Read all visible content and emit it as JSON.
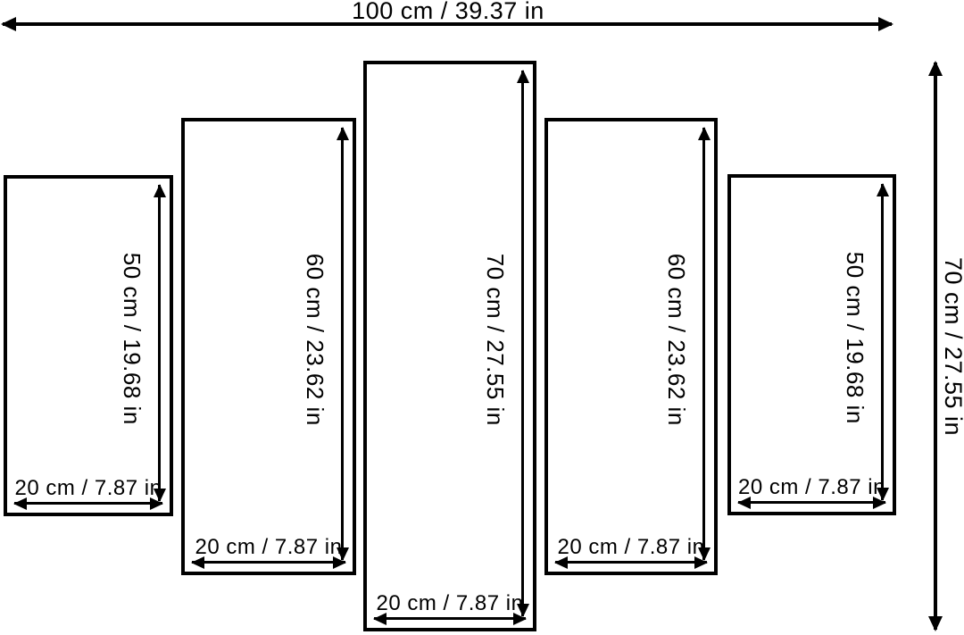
{
  "diagram": {
    "type": "5-panel canvas size diagram",
    "overall": {
      "width_label": "100 cm / 39.37 in",
      "height_label": "70 cm / 27.55 in",
      "width_cm": 100,
      "width_in": 39.37,
      "height_cm": 70,
      "height_in": 27.55
    },
    "panels": [
      {
        "height_label": "50 cm / 19.68 in",
        "width_label": "20 cm / 7.87 in",
        "height_cm": 50,
        "height_in": 19.68,
        "width_cm": 20,
        "width_in": 7.87
      },
      {
        "height_label": "60 cm / 23.62 in",
        "width_label": "20 cm / 7.87 in",
        "height_cm": 60,
        "height_in": 23.62,
        "width_cm": 20,
        "width_in": 7.87
      },
      {
        "height_label": "70 cm / 27.55 in",
        "width_label": "20 cm / 7.87 in",
        "height_cm": 70,
        "height_in": 27.55,
        "width_cm": 20,
        "width_in": 7.87
      },
      {
        "height_label": "60 cm / 23.62 in",
        "width_label": "20 cm / 7.87 in",
        "height_cm": 60,
        "height_in": 23.62,
        "width_cm": 20,
        "width_in": 7.87
      },
      {
        "height_label": "50 cm / 19.68 in",
        "width_label": "20 cm / 7.87 in",
        "height_cm": 50,
        "height_in": 19.68,
        "width_cm": 20,
        "width_in": 7.87
      }
    ],
    "colors": {
      "line": "#000000",
      "text": "#000000",
      "background": "#ffffff"
    }
  }
}
